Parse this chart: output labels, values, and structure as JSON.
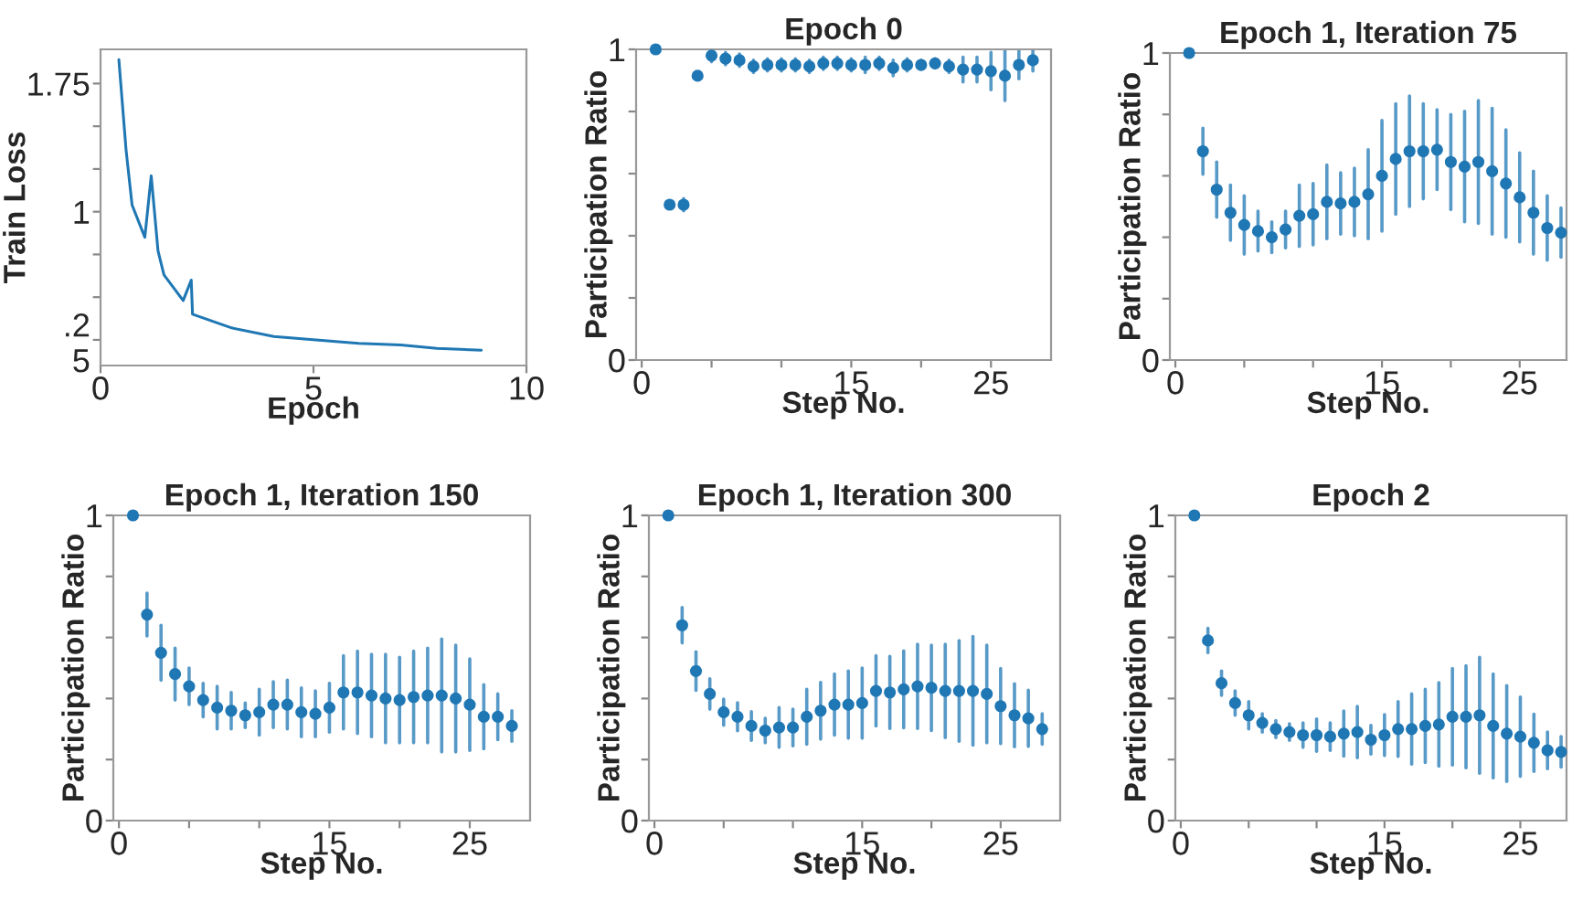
{
  "chart_data": [
    {
      "type": "line",
      "xlabel": "Epoch",
      "ylabel": "Train Loss",
      "xlim": [
        0,
        10
      ],
      "ylim": [
        0.1,
        1.95
      ],
      "xticks": [
        0,
        5,
        10
      ],
      "yticks": [
        {
          "value": 0.25,
          "label": ".2\n5"
        },
        {
          "value": 0.5,
          "label": null
        },
        {
          "value": 0.75,
          "label": null
        },
        1,
        {
          "value": 1.25,
          "label": null
        },
        {
          "value": 1.5,
          "label": null
        },
        1.75
      ],
      "grid": false,
      "marker": "none",
      "line_style": "solid",
      "series": [
        {
          "color": "#1f77b4",
          "x": [
            0.43,
            0.6,
            0.74,
            1.04,
            1.19,
            1.35,
            1.49,
            1.94,
            2.13,
            2.16,
            3.08,
            4.07,
            5.06,
            6.06,
            7.05,
            7.9,
            8.94
          ],
          "values": [
            1.89,
            1.36,
            1.04,
            0.85,
            1.21,
            0.77,
            0.63,
            0.48,
            0.6,
            0.4,
            0.32,
            0.27,
            0.25,
            0.23,
            0.22,
            0.2,
            0.19
          ]
        }
      ]
    },
    {
      "type": "scatter",
      "title": "Epoch 0",
      "xlabel": "Step No.",
      "ylabel": "Participation Ratio",
      "xlim": [
        -0.4,
        29.3
      ],
      "ylim": [
        0,
        1
      ],
      "xticks": [
        0,
        {
          "value": 5,
          "label": null
        },
        {
          "value": 10,
          "label": null
        },
        15,
        {
          "value": 20,
          "label": null
        },
        25
      ],
      "yticks": [
        0,
        {
          "value": 0.2,
          "label": null
        },
        {
          "value": 0.4,
          "label": null
        },
        {
          "value": 0.6,
          "label": null
        },
        {
          "value": 0.8,
          "label": null
        },
        1
      ],
      "grid": false,
      "marker": "circle",
      "series": [
        {
          "color": "#1f77b4",
          "x": [
            1,
            2,
            3,
            4,
            5,
            6,
            7,
            8,
            9,
            10,
            11,
            12,
            13,
            14,
            15,
            16,
            17,
            18,
            19,
            20,
            21,
            22,
            23,
            24,
            25,
            26,
            27,
            28
          ],
          "values": [
            1.0,
            0.5,
            0.5,
            0.915,
            0.98,
            0.97,
            0.965,
            0.945,
            0.95,
            0.95,
            0.95,
            0.945,
            0.955,
            0.955,
            0.95,
            0.95,
            0.955,
            0.94,
            0.95,
            0.95,
            0.955,
            0.945,
            0.935,
            0.935,
            0.93,
            0.915,
            0.95,
            0.965
          ],
          "errors": [
            null,
            0.01,
            0.02,
            0.01,
            0.02,
            0.02,
            0.02,
            0.02,
            0.02,
            0.02,
            0.02,
            0.02,
            0.02,
            0.02,
            0.02,
            0.025,
            0.02,
            0.025,
            0.02,
            0.015,
            0.015,
            0.02,
            0.04,
            0.04,
            0.06,
            0.08,
            0.045,
            0.035
          ]
        }
      ]
    },
    {
      "type": "scatter",
      "title": "Epoch 1, Iteration 75",
      "xlabel": "Step No.",
      "ylabel": "Participation Ratio",
      "xlim": [
        -0.4,
        28.4
      ],
      "ylim": [
        0,
        1
      ],
      "xticks": [
        0,
        {
          "value": 5,
          "label": null
        },
        {
          "value": 10,
          "label": null
        },
        15,
        {
          "value": 20,
          "label": null
        },
        25
      ],
      "yticks": [
        0,
        {
          "value": 0.2,
          "label": null
        },
        {
          "value": 0.4,
          "label": null
        },
        {
          "value": 0.6,
          "label": null
        },
        {
          "value": 0.8,
          "label": null
        },
        1
      ],
      "grid": false,
      "marker": "circle",
      "series": [
        {
          "color": "#1f77b4",
          "x": [
            1,
            2,
            3,
            4,
            5,
            6,
            7,
            8,
            9,
            10,
            11,
            12,
            13,
            14,
            15,
            16,
            17,
            18,
            19,
            20,
            21,
            22,
            23,
            24,
            25,
            26,
            27,
            28
          ],
          "values": [
            1.0,
            0.68,
            0.555,
            0.48,
            0.44,
            0.42,
            0.4,
            0.425,
            0.47,
            0.475,
            0.515,
            0.51,
            0.515,
            0.54,
            0.6,
            0.655,
            0.68,
            0.68,
            0.685,
            0.645,
            0.63,
            0.645,
            0.615,
            0.575,
            0.53,
            0.48,
            0.43,
            0.415
          ],
          "errors": [
            null,
            0.075,
            0.09,
            0.09,
            0.095,
            0.065,
            0.05,
            0.06,
            0.1,
            0.1,
            0.12,
            0.1,
            0.11,
            0.145,
            0.18,
            0.18,
            0.18,
            0.155,
            0.13,
            0.155,
            0.18,
            0.2,
            0.205,
            0.175,
            0.145,
            0.135,
            0.105,
            0.08
          ]
        }
      ]
    },
    {
      "type": "scatter",
      "title": "Epoch 1, Iteration 150",
      "xlabel": "Step No.",
      "ylabel": "Participation Ratio",
      "xlim": [
        -0.4,
        29.3
      ],
      "ylim": [
        0,
        1
      ],
      "xticks": [
        0,
        {
          "value": 5,
          "label": null
        },
        {
          "value": 10,
          "label": null
        },
        15,
        {
          "value": 20,
          "label": null
        },
        25
      ],
      "yticks": [
        0,
        {
          "value": 0.2,
          "label": null
        },
        {
          "value": 0.4,
          "label": null
        },
        {
          "value": 0.6,
          "label": null
        },
        {
          "value": 0.8,
          "label": null
        },
        1
      ],
      "grid": false,
      "marker": "circle",
      "series": [
        {
          "color": "#1f77b4",
          "x": [
            1,
            2,
            3,
            4,
            5,
            6,
            7,
            8,
            9,
            10,
            11,
            12,
            13,
            14,
            15,
            16,
            17,
            18,
            19,
            20,
            21,
            22,
            23,
            24,
            25,
            26,
            27,
            28
          ],
          "values": [
            1.0,
            0.675,
            0.55,
            0.48,
            0.44,
            0.395,
            0.37,
            0.36,
            0.345,
            0.355,
            0.38,
            0.38,
            0.355,
            0.35,
            0.37,
            0.42,
            0.42,
            0.41,
            0.4,
            0.395,
            0.405,
            0.41,
            0.41,
            0.4,
            0.38,
            0.34,
            0.34,
            0.31
          ],
          "errors": [
            null,
            0.07,
            0.09,
            0.085,
            0.06,
            0.055,
            0.07,
            0.06,
            0.04,
            0.075,
            0.075,
            0.08,
            0.08,
            0.075,
            0.08,
            0.12,
            0.135,
            0.135,
            0.145,
            0.14,
            0.15,
            0.155,
            0.185,
            0.175,
            0.15,
            0.105,
            0.075,
            0.05
          ]
        }
      ]
    },
    {
      "type": "scatter",
      "title": "Epoch 1, Iteration 300",
      "xlabel": "Step No.",
      "ylabel": "Participation Ratio",
      "xlim": [
        -0.4,
        29.3
      ],
      "ylim": [
        0,
        1
      ],
      "xticks": [
        0,
        {
          "value": 5,
          "label": null
        },
        {
          "value": 10,
          "label": null
        },
        15,
        {
          "value": 20,
          "label": null
        },
        25
      ],
      "yticks": [
        0,
        {
          "value": 0.2,
          "label": null
        },
        {
          "value": 0.4,
          "label": null
        },
        {
          "value": 0.6,
          "label": null
        },
        {
          "value": 0.8,
          "label": null
        },
        1
      ],
      "grid": false,
      "marker": "circle",
      "series": [
        {
          "color": "#1f77b4",
          "x": [
            1,
            2,
            3,
            4,
            5,
            6,
            7,
            8,
            9,
            10,
            11,
            12,
            13,
            14,
            15,
            16,
            17,
            18,
            19,
            20,
            21,
            22,
            23,
            24,
            25,
            26,
            27,
            28
          ],
          "values": [
            1.0,
            0.64,
            0.49,
            0.415,
            0.355,
            0.34,
            0.31,
            0.295,
            0.305,
            0.305,
            0.34,
            0.36,
            0.38,
            0.38,
            0.385,
            0.425,
            0.42,
            0.43,
            0.44,
            0.435,
            0.425,
            0.425,
            0.425,
            0.415,
            0.375,
            0.345,
            0.335,
            0.3
          ],
          "errors": [
            null,
            0.058,
            0.063,
            0.05,
            0.043,
            0.046,
            0.047,
            0.04,
            0.065,
            0.06,
            0.09,
            0.093,
            0.1,
            0.11,
            0.115,
            0.115,
            0.118,
            0.126,
            0.138,
            0.14,
            0.153,
            0.165,
            0.178,
            0.16,
            0.123,
            0.103,
            0.092,
            0.05
          ]
        }
      ]
    },
    {
      "type": "scatter",
      "title": "Epoch 2",
      "xlabel": "Step No.",
      "ylabel": "Participation Ratio",
      "xlim": [
        -0.4,
        28.4
      ],
      "ylim": [
        0,
        1
      ],
      "xticks": [
        0,
        {
          "value": 5,
          "label": null
        },
        {
          "value": 10,
          "label": null
        },
        15,
        {
          "value": 20,
          "label": null
        },
        25
      ],
      "yticks": [
        0,
        {
          "value": 0.2,
          "label": null
        },
        {
          "value": 0.4,
          "label": null
        },
        {
          "value": 0.6,
          "label": null
        },
        {
          "value": 0.8,
          "label": null
        },
        1
      ],
      "grid": false,
      "marker": "circle",
      "series": [
        {
          "color": "#1f77b4",
          "x": [
            1,
            2,
            3,
            4,
            5,
            6,
            7,
            8,
            9,
            10,
            11,
            12,
            13,
            14,
            15,
            16,
            17,
            18,
            19,
            20,
            21,
            22,
            23,
            24,
            25,
            26,
            27,
            28
          ],
          "values": [
            1.0,
            0.59,
            0.45,
            0.385,
            0.345,
            0.32,
            0.3,
            0.29,
            0.28,
            0.28,
            0.275,
            0.285,
            0.29,
            0.265,
            0.28,
            0.3,
            0.3,
            0.31,
            0.315,
            0.34,
            0.34,
            0.345,
            0.31,
            0.285,
            0.275,
            0.255,
            0.23,
            0.225
          ],
          "errors": [
            null,
            0.04,
            0.04,
            0.04,
            0.045,
            0.03,
            0.028,
            0.027,
            0.04,
            0.053,
            0.045,
            0.074,
            0.084,
            0.047,
            0.067,
            0.09,
            0.115,
            0.12,
            0.137,
            0.158,
            0.167,
            0.19,
            0.17,
            0.157,
            0.13,
            0.094,
            0.06,
            0.05
          ]
        }
      ]
    }
  ]
}
